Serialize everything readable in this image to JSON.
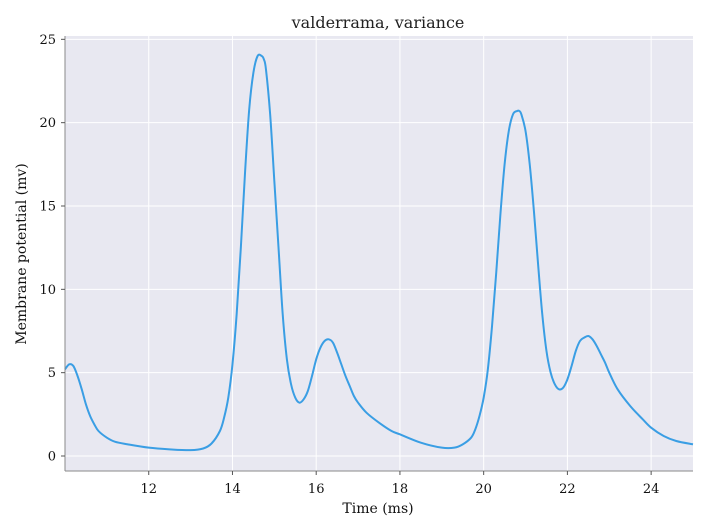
{
  "chart_data": {
    "type": "line",
    "title": "valderrama, variance",
    "xlabel": "Time (ms)",
    "ylabel": "Membrane potential (mv)",
    "xlim": [
      10.0,
      25.0
    ],
    "ylim": [
      -0.9,
      25.2
    ],
    "xticks": [
      12,
      14,
      16,
      18,
      20,
      22,
      24
    ],
    "yticks": [
      0,
      5,
      10,
      15,
      20,
      25
    ],
    "grid": true,
    "background": "#e8e8f1",
    "series": [
      {
        "color": "#3a9ee4",
        "x": [
          10.0,
          10.1,
          10.2,
          10.3,
          10.4,
          10.5,
          10.6,
          10.7,
          10.8,
          11.0,
          11.2,
          11.5,
          12.0,
          12.5,
          13.0,
          13.3,
          13.5,
          13.7,
          13.8,
          13.9,
          14.0,
          14.1,
          14.2,
          14.3,
          14.4,
          14.5,
          14.6,
          14.7,
          14.75,
          14.8,
          14.9,
          15.0,
          15.1,
          15.2,
          15.3,
          15.4,
          15.5,
          15.6,
          15.7,
          15.8,
          15.9,
          16.0,
          16.1,
          16.2,
          16.3,
          16.4,
          16.5,
          16.6,
          16.7,
          16.8,
          16.9,
          17.0,
          17.2,
          17.5,
          17.8,
          18.0,
          18.5,
          19.0,
          19.3,
          19.5,
          19.7,
          19.8,
          19.9,
          20.0,
          20.1,
          20.2,
          20.3,
          20.4,
          20.5,
          20.6,
          20.7,
          20.8,
          20.85,
          20.9,
          21.0,
          21.1,
          21.2,
          21.3,
          21.4,
          21.5,
          21.6,
          21.7,
          21.8,
          21.9,
          22.0,
          22.1,
          22.2,
          22.3,
          22.4,
          22.5,
          22.6,
          22.7,
          22.8,
          22.9,
          23.0,
          23.2,
          23.5,
          23.8,
          24.0,
          24.3,
          24.6,
          25.0
        ],
        "y": [
          5.2,
          5.5,
          5.4,
          4.8,
          4.0,
          3.1,
          2.4,
          1.9,
          1.5,
          1.1,
          0.85,
          0.7,
          0.5,
          0.4,
          0.35,
          0.45,
          0.75,
          1.5,
          2.3,
          3.5,
          5.5,
          8.5,
          12.5,
          17.0,
          20.8,
          23.0,
          24.0,
          24.0,
          23.8,
          23.2,
          20.5,
          16.5,
          12.5,
          8.5,
          5.8,
          4.3,
          3.5,
          3.2,
          3.4,
          3.9,
          4.8,
          5.8,
          6.5,
          6.9,
          7.0,
          6.8,
          6.2,
          5.5,
          4.8,
          4.2,
          3.6,
          3.2,
          2.6,
          2.0,
          1.5,
          1.3,
          0.8,
          0.5,
          0.5,
          0.7,
          1.1,
          1.6,
          2.4,
          3.5,
          5.2,
          7.8,
          11.0,
          14.5,
          17.5,
          19.5,
          20.5,
          20.7,
          20.7,
          20.5,
          19.5,
          17.5,
          14.7,
          11.5,
          8.5,
          6.3,
          5.0,
          4.3,
          4.0,
          4.1,
          4.6,
          5.4,
          6.3,
          6.9,
          7.1,
          7.2,
          7.0,
          6.6,
          6.1,
          5.6,
          5.0,
          4.0,
          3.0,
          2.2,
          1.7,
          1.2,
          0.9,
          0.7
        ]
      }
    ]
  }
}
